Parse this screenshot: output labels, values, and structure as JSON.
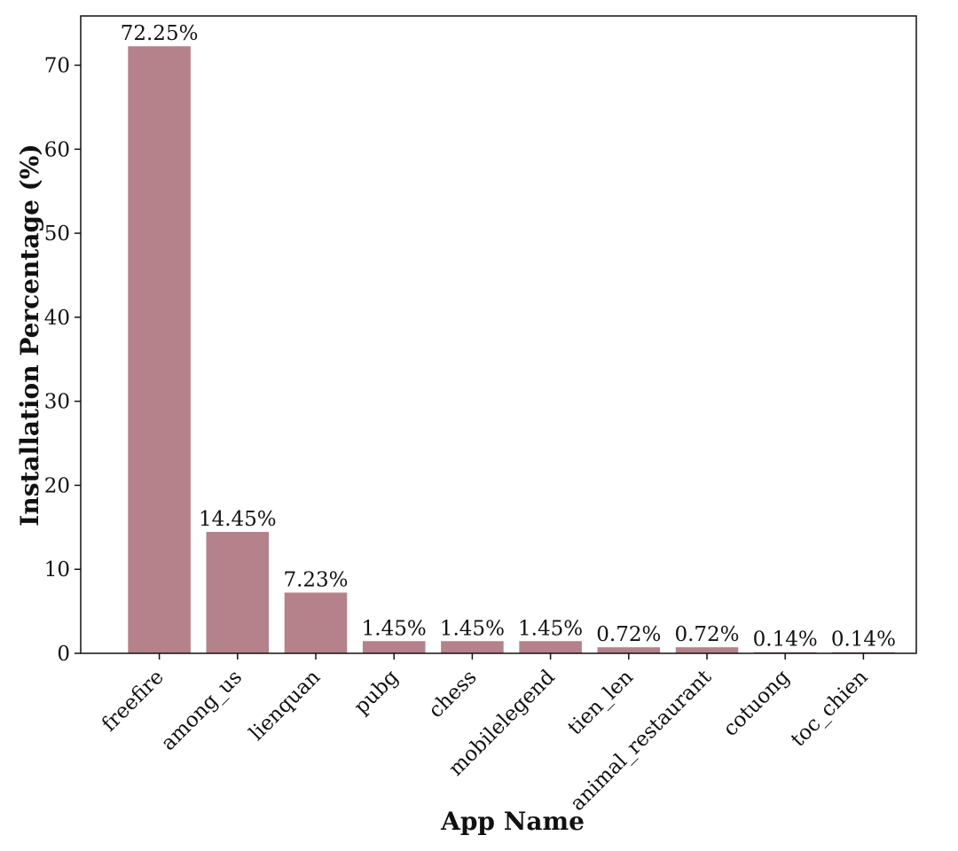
{
  "chart_data": {
    "type": "bar",
    "title": "",
    "xlabel": "App Name",
    "ylabel": "Installation Percentage (%)",
    "categories": [
      "freefire",
      "among_us",
      "lienquan",
      "pubg",
      "chess",
      "mobilelegend",
      "tien_len",
      "animal_restaurant",
      "cotuong",
      "toc_chien"
    ],
    "values": [
      72.25,
      14.45,
      7.23,
      1.45,
      1.45,
      1.45,
      0.72,
      0.72,
      0.14,
      0.14
    ],
    "value_labels": [
      "72.25%",
      "14.45%",
      "7.23%",
      "1.45%",
      "1.45%",
      "1.45%",
      "0.72%",
      "0.72%",
      "0.14%",
      "0.14%"
    ],
    "ylim": [
      0,
      75.86
    ],
    "yticks": [
      0,
      10,
      20,
      30,
      40,
      50,
      60,
      70
    ],
    "grid": false,
    "bar_color": "#b5818a"
  }
}
